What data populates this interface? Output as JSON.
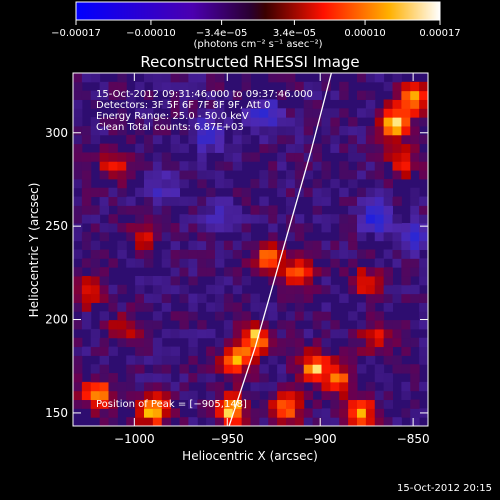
{
  "colorbar": {
    "tick_labels": [
      "−0.00017",
      "−0.00010",
      "−3.4e−05",
      "3.4e−05",
      "0.00010",
      "0.00017"
    ],
    "tick_values": [
      -0.00017,
      -0.0001,
      -3.4e-05,
      3.4e-05,
      0.0001,
      0.00017
    ],
    "range": [
      -0.00017,
      0.00017
    ],
    "units_label": "(photons cm⁻² s⁻¹ asec⁻²)"
  },
  "chart_data": {
    "type": "heatmap",
    "title": "Reconstructed RHESSI Image",
    "xlabel": "Heliocentric X (arcsec)",
    "ylabel": "Heliocentric Y (arcsec)",
    "xlim": [
      -1033,
      -842
    ],
    "ylim": [
      143,
      332
    ],
    "x_ticks": [
      -1000,
      -950,
      -900,
      -850
    ],
    "x_tick_labels": [
      "−1000",
      "−950",
      "−900",
      "−850"
    ],
    "y_ticks": [
      150,
      200,
      250,
      300
    ],
    "y_tick_labels": [
      "150",
      "200",
      "250",
      "300"
    ],
    "colormap": "blue-purple-red-yellow-white",
    "annotations": [
      "15-Oct-2012 09:31:46.000 to 09:37:46.000",
      "Detectors: 3F 5F 6F 7F 8F 9F, Att 0",
      "Energy Range: 25.0 - 50.0 keV",
      "Clean     Total counts: 6.87E+03"
    ],
    "peak_label": "Position of Peak = [−905,148]",
    "peak": [
      -905,
      148
    ],
    "limb_line": [
      [
        -949,
        143
      ],
      [
        -935,
        185
      ],
      [
        -925,
        220
      ],
      [
        -915,
        255
      ],
      [
        -905,
        290
      ],
      [
        -894,
        332
      ]
    ],
    "hotspots": [
      {
        "x": -990,
        "y": 152,
        "v": 1.0
      },
      {
        "x": -948,
        "y": 152,
        "v": 1.0
      },
      {
        "x": -918,
        "y": 153,
        "v": 0.85
      },
      {
        "x": -878,
        "y": 150,
        "v": 0.75
      },
      {
        "x": -1020,
        "y": 160,
        "v": 0.8
      },
      {
        "x": -935,
        "y": 190,
        "v": 0.9
      },
      {
        "x": -945,
        "y": 178,
        "v": 0.75
      },
      {
        "x": -903,
        "y": 175,
        "v": 0.85
      },
      {
        "x": -890,
        "y": 168,
        "v": 0.7
      },
      {
        "x": -928,
        "y": 232,
        "v": 0.8
      },
      {
        "x": -912,
        "y": 225,
        "v": 0.65
      },
      {
        "x": -860,
        "y": 305,
        "v": 0.95
      },
      {
        "x": -850,
        "y": 318,
        "v": 0.85
      },
      {
        "x": -855,
        "y": 285,
        "v": 0.55
      },
      {
        "x": -1010,
        "y": 282,
        "v": 0.55
      },
      {
        "x": -1025,
        "y": 215,
        "v": 0.5
      },
      {
        "x": -995,
        "y": 245,
        "v": 0.45
      },
      {
        "x": -875,
        "y": 220,
        "v": 0.5
      },
      {
        "x": -870,
        "y": 190,
        "v": 0.5
      },
      {
        "x": -1005,
        "y": 195,
        "v": 0.45
      }
    ],
    "coldspots": [
      {
        "x": -960,
        "y": 300,
        "v": -0.6
      },
      {
        "x": -930,
        "y": 310,
        "v": -0.55
      },
      {
        "x": -870,
        "y": 255,
        "v": -0.65
      },
      {
        "x": -850,
        "y": 245,
        "v": -0.55
      },
      {
        "x": -985,
        "y": 270,
        "v": -0.35
      },
      {
        "x": -955,
        "y": 255,
        "v": -0.3
      }
    ]
  },
  "footer": {
    "timestamp": "15-Oct-2012 20:15"
  }
}
